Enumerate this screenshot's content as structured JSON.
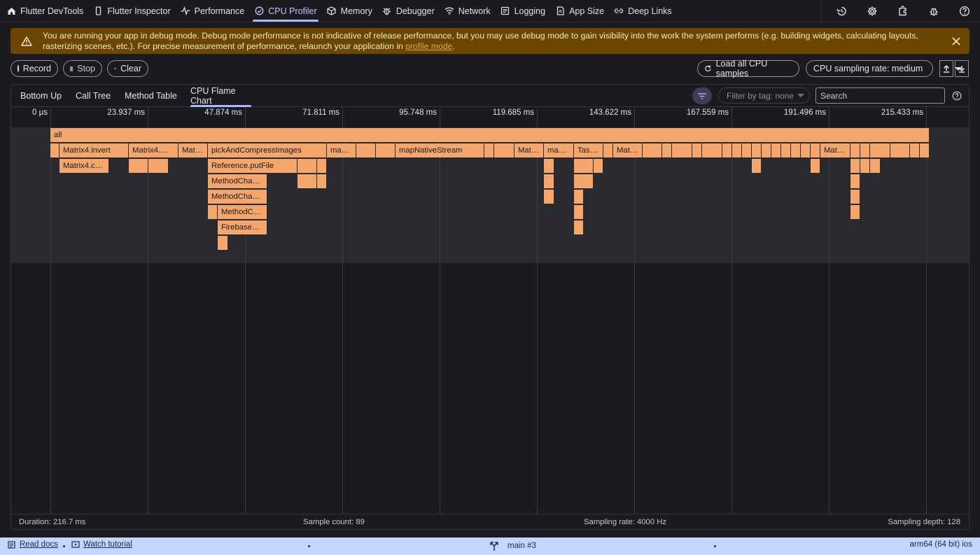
{
  "nav": {
    "tabs": [
      {
        "label": "Flutter DevTools",
        "icon": "home-icon"
      },
      {
        "label": "Flutter Inspector",
        "icon": "phone-icon"
      },
      {
        "label": "Performance",
        "icon": "pulse-icon"
      },
      {
        "label": "CPU Profiler",
        "icon": "gauge-icon",
        "active": true
      },
      {
        "label": "Memory",
        "icon": "memory-icon"
      },
      {
        "label": "Debugger",
        "icon": "bug-icon"
      },
      {
        "label": "Network",
        "icon": "wifi-icon"
      },
      {
        "label": "Logging",
        "icon": "logging-icon"
      },
      {
        "label": "App Size",
        "icon": "app-size-icon"
      },
      {
        "label": "Deep Links",
        "icon": "link-icon"
      }
    ],
    "actions": [
      "history-icon",
      "settings-icon",
      "extensions-icon",
      "debug-icon",
      "help-icon"
    ]
  },
  "banner": {
    "message": "You are running your app in debug mode. Debug mode performance is not indicative of release performance, but you may use debug mode to gain visibility into the work the system performs (e.g. building widgets, calculating layouts, rasterizing scenes, etc.). For precise measurement of performance, relaunch your application in ",
    "link": "profile mode",
    "suffix": ".",
    "color": "#6a4600"
  },
  "controls": {
    "record": "Record",
    "stop": "Stop",
    "clear": "Clear",
    "load_all": "Load all CPU samples",
    "sampling_rate": "CPU sampling rate: medium"
  },
  "profiler_tabs": [
    "Bottom Up",
    "Call Tree",
    "Method Table",
    "CPU Flame Chart"
  ],
  "active_profiler_tab": "CPU Flame Chart",
  "filter": {
    "tag": "Filter by tag: none",
    "search_placeholder": "Search"
  },
  "timeline": {
    "ticks": [
      "0 μs",
      "23.937 ms",
      "47.874 ms",
      "71.811 ms",
      "95.748 ms",
      "119.685 ms",
      "143.622 ms",
      "167.559 ms",
      "191.496 ms",
      "215.433 ms"
    ],
    "node_color": "#f4a66c"
  },
  "flame_nodes": {
    "root": "all",
    "matrix_invert": "Matrix4.invert",
    "matrix_c": "Matrix4.c…",
    "matrix_dots": "Matrix4.…",
    "mat1": "Mat…",
    "pick": "pickAndCompressImages",
    "ma1": "ma…",
    "map_native": "mapNativeStream",
    "mat2": "Mat…",
    "ma2": "ma…",
    "tas": "Tas…",
    "mat3": "Mat…",
    "mat4": "Mat…",
    "ref_put": "Reference.putFile",
    "method_cha1": "MethodCha…",
    "method_cha2": "MethodCha…",
    "method_c": "MethodC…",
    "firebase": "Firebase…"
  },
  "footer": {
    "duration": "Duration: 216.7 ms",
    "sample_count": "Sample count: 89",
    "sampling_rate": "Sampling rate: 4000 Hz",
    "sampling_depth": "Sampling depth: 128"
  },
  "status_bar": {
    "read_docs": "Read docs",
    "watch_tutorial": "Watch tutorial",
    "isolate": "main #3",
    "device": "arm64 (64 bit) ios",
    "color": "#c2d6ff"
  }
}
